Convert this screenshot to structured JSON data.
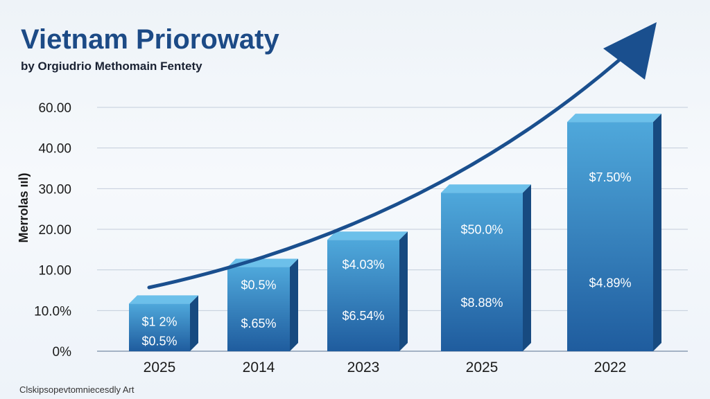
{
  "colors": {
    "title": "#1c4a86",
    "arrow": "#1a4f8e",
    "grid": "#c3cddb",
    "bar_top": "#4fa8db",
    "bar_bottom": "#1f5c9e",
    "bar_cap": "#6cc0ea",
    "bar_side": "#174a80"
  },
  "chart_data": {
    "type": "bar",
    "title": "Vietnam Priorowaty",
    "subtitle": "by Orgiudrio Methomain Fentety",
    "xlabel": "",
    "ylabel": "Merrolas ııl)",
    "y_ticks": [
      "60.00",
      "40.00",
      "30.00",
      "20.00",
      "10.00",
      "10.0%",
      "0%"
    ],
    "ylim": [
      0,
      6
    ],
    "grid": true,
    "categories": [
      "2025",
      "2014",
      "2023",
      "2025",
      "2022"
    ],
    "values": [
      1.17,
      2.07,
      2.74,
      3.9,
      5.64
    ],
    "bar_labels": [
      [
        "$1 2%",
        "$0.5%"
      ],
      [
        "$0.5%",
        "$.65%"
      ],
      [
        "$4.03%",
        "$6.54%"
      ],
      [
        "$50.0%",
        "$8.88%"
      ],
      [
        "$7.50%",
        "$4.89%"
      ]
    ],
    "annotation": "upward trend arrow",
    "footer": "Clskipsopevtomniecesdly Art"
  }
}
